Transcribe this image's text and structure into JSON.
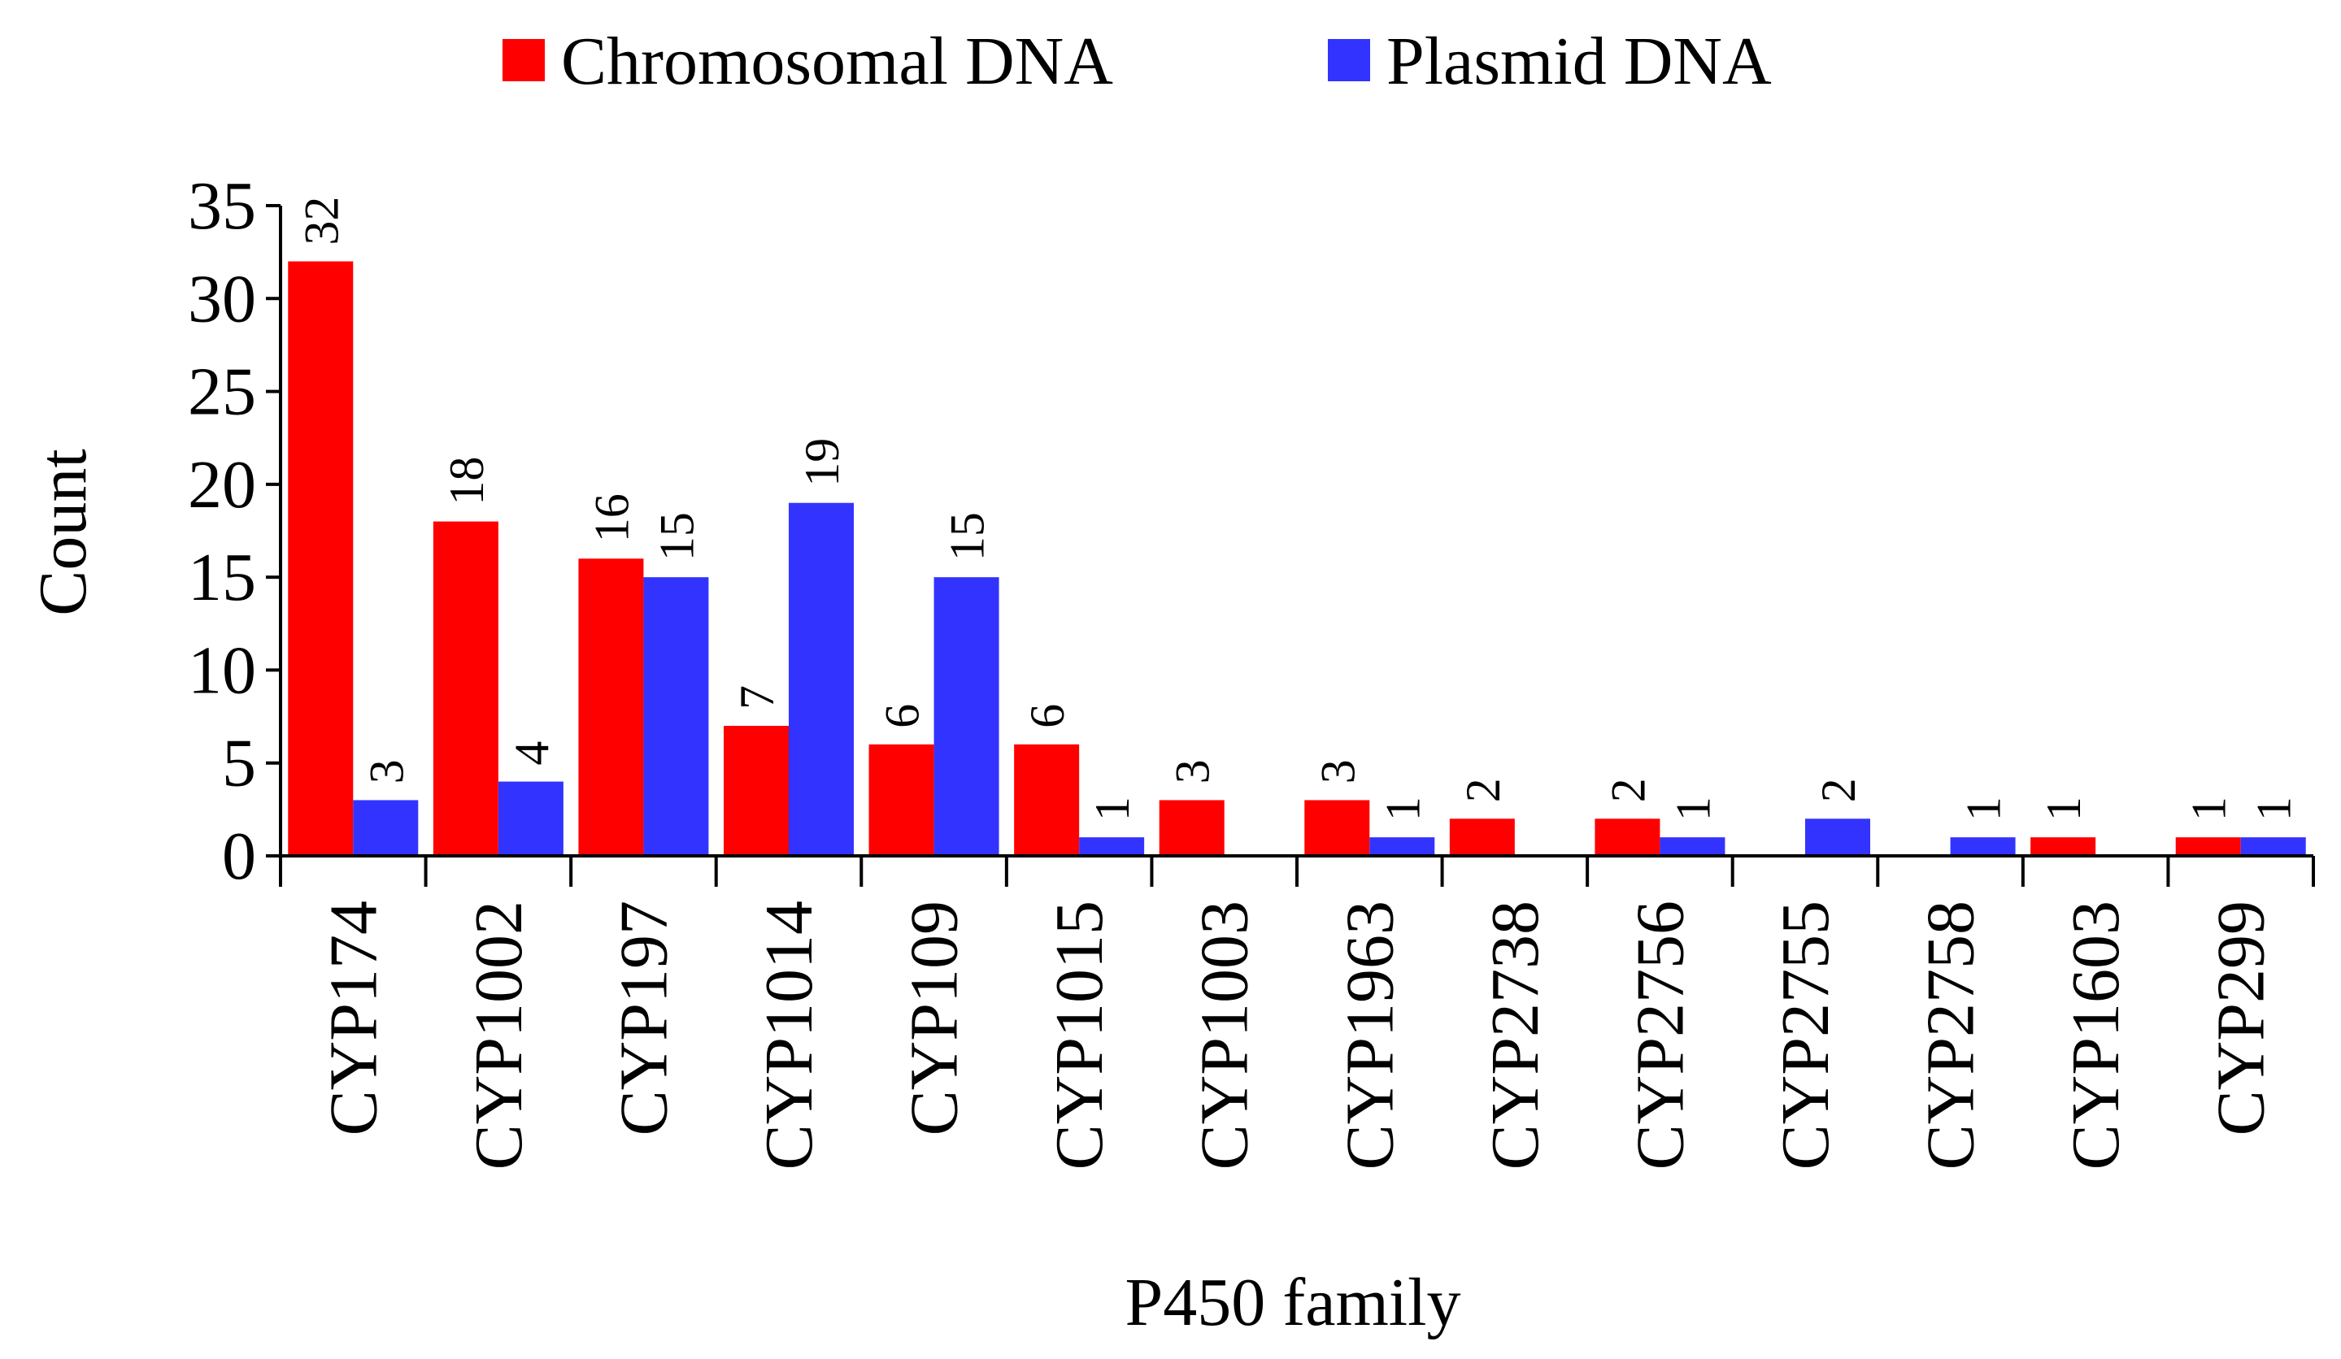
{
  "chart_data": {
    "type": "bar",
    "title": "",
    "xlabel": "P450 family",
    "ylabel": "Count",
    "ylim": [
      0,
      35
    ],
    "yticks": [
      0,
      5,
      10,
      15,
      20,
      25,
      30,
      35
    ],
    "grid": false,
    "legend_position": "top",
    "categories": [
      "CYP174",
      "CYP1002",
      "CYP197",
      "CYP1014",
      "CYP109",
      "CYP1015",
      "CYP1003",
      "CYP1963",
      "CYP2738",
      "CYP2756",
      "CYP2755",
      "CYP2758",
      "CYP1603",
      "CYP299"
    ],
    "series": [
      {
        "name": "Chromosomal DNA",
        "color": "#ff0000",
        "values": [
          32,
          18,
          16,
          7,
          6,
          6,
          3,
          3,
          2,
          2,
          0,
          0,
          1,
          1
        ],
        "labels": [
          "32",
          "18",
          "16",
          "7",
          "6",
          "6",
          "3",
          "3",
          "2",
          "2",
          "",
          "",
          "1",
          "1"
        ]
      },
      {
        "name": "Plasmid DNA",
        "color": "#3333ff",
        "values": [
          3,
          4,
          15,
          19,
          15,
          1,
          0,
          1,
          0,
          1,
          2,
          1,
          0,
          1
        ],
        "labels": [
          "3",
          "4",
          "15",
          "19",
          "15",
          "1",
          "",
          "1",
          "",
          "1",
          "2",
          "1",
          "",
          "1"
        ]
      }
    ]
  }
}
